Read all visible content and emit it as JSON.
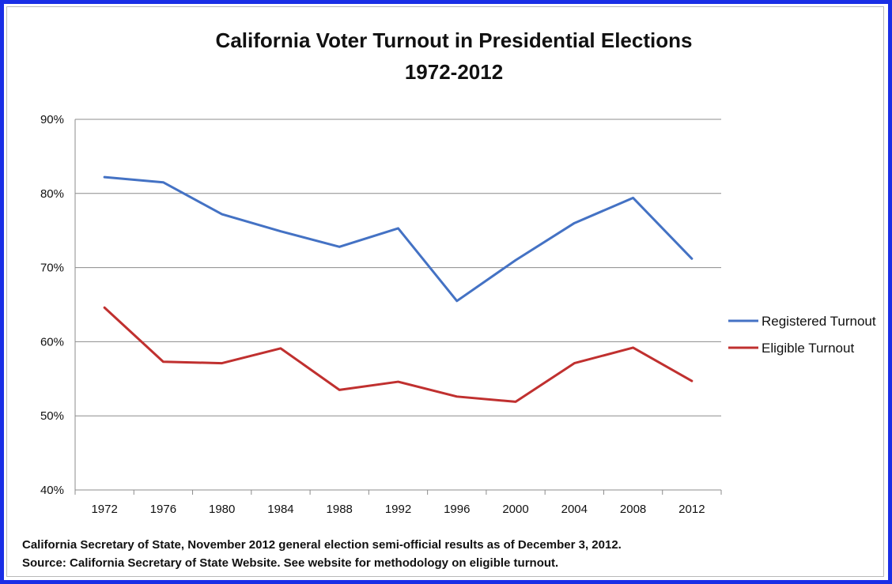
{
  "chart_data": {
    "type": "line",
    "title": "California Voter Turnout in Presidential Elections",
    "subtitle": "1972-2012",
    "xlabel": "",
    "ylabel": "",
    "x": [
      "1972",
      "1976",
      "1980",
      "1984",
      "1988",
      "1992",
      "1996",
      "2000",
      "2004",
      "2008",
      "2012"
    ],
    "ylim": [
      40,
      90
    ],
    "yticks": [
      40,
      50,
      60,
      70,
      80,
      90
    ],
    "ytick_suffix": "%",
    "grid": true,
    "legend_position": "right",
    "series": [
      {
        "name": "Registered Turnout",
        "color": "#4472c4",
        "values": [
          82.2,
          81.5,
          77.2,
          74.9,
          72.8,
          75.3,
          65.5,
          71.0,
          76.0,
          79.4,
          71.2
        ]
      },
      {
        "name": "Eligible Turnout",
        "color": "#c0302f",
        "values": [
          64.6,
          57.3,
          57.1,
          59.1,
          53.5,
          54.6,
          52.6,
          51.9,
          57.1,
          59.2,
          54.7
        ]
      }
    ]
  },
  "footnote": {
    "line1": "California Secretary of State, November 2012 general election semi-official results as of December 3, 2012.",
    "line2": "Source: California Secretary of State Website. See website for methodology on eligible turnout."
  }
}
